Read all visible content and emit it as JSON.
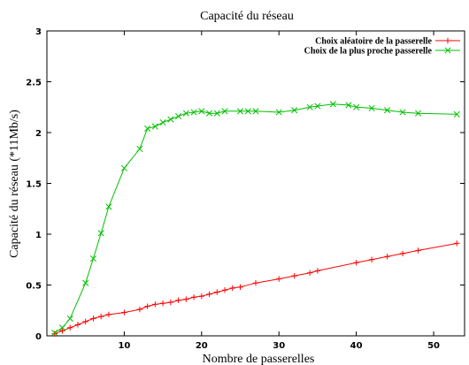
{
  "chart_data": {
    "type": "line",
    "title": "Capacité du réseau",
    "xlabel": "Nombre de passerelles",
    "ylabel": "Capacité du réseau (*11Mb/s)",
    "xlim": [
      0,
      54
    ],
    "ylim": [
      0,
      3
    ],
    "xticks": [
      10,
      20,
      30,
      40,
      50
    ],
    "yticks": [
      0,
      0.5,
      1,
      1.5,
      2,
      2.5,
      3
    ],
    "ytick_labels": [
      "0",
      "0.5",
      "1",
      "1.5",
      "2",
      "2.5",
      "3"
    ],
    "grid": false,
    "legend_position": "top-right",
    "series": [
      {
        "name": "Choix aléatoire de la passerelle",
        "color": "#ff0000",
        "marker": "plus",
        "points": [
          [
            1,
            0.02
          ],
          [
            2,
            0.05
          ],
          [
            3,
            0.08
          ],
          [
            4,
            0.11
          ],
          [
            5,
            0.14
          ],
          [
            6,
            0.17
          ],
          [
            7,
            0.19
          ],
          [
            8,
            0.21
          ],
          [
            10,
            0.23
          ],
          [
            12,
            0.26
          ],
          [
            13,
            0.29
          ],
          [
            14,
            0.31
          ],
          [
            15,
            0.32
          ],
          [
            16,
            0.33
          ],
          [
            17,
            0.35
          ],
          [
            18,
            0.36
          ],
          [
            19,
            0.38
          ],
          [
            20,
            0.39
          ],
          [
            21,
            0.41
          ],
          [
            22,
            0.43
          ],
          [
            23,
            0.45
          ],
          [
            24,
            0.47
          ],
          [
            25,
            0.48
          ],
          [
            27,
            0.52
          ],
          [
            30,
            0.56
          ],
          [
            32,
            0.59
          ],
          [
            34,
            0.62
          ],
          [
            35,
            0.64
          ],
          [
            40,
            0.72
          ],
          [
            42,
            0.75
          ],
          [
            44,
            0.78
          ],
          [
            46,
            0.81
          ],
          [
            48,
            0.84
          ],
          [
            53,
            0.91
          ]
        ]
      },
      {
        "name": "Choix de la plus proche passerelle",
        "color": "#00c000",
        "marker": "x",
        "points": [
          [
            1,
            0.03
          ],
          [
            2,
            0.08
          ],
          [
            3,
            0.17
          ],
          [
            5,
            0.52
          ],
          [
            6,
            0.76
          ],
          [
            7,
            1.01
          ],
          [
            8,
            1.27
          ],
          [
            10,
            1.65
          ],
          [
            12,
            1.84
          ],
          [
            13,
            2.04
          ],
          [
            14,
            2.06
          ],
          [
            15,
            2.1
          ],
          [
            16,
            2.13
          ],
          [
            17,
            2.16
          ],
          [
            18,
            2.19
          ],
          [
            19,
            2.2
          ],
          [
            20,
            2.21
          ],
          [
            21,
            2.19
          ],
          [
            22,
            2.19
          ],
          [
            23,
            2.21
          ],
          [
            25,
            2.21
          ],
          [
            26,
            2.21
          ],
          [
            27,
            2.21
          ],
          [
            30,
            2.2
          ],
          [
            32,
            2.22
          ],
          [
            34,
            2.25
          ],
          [
            35,
            2.26
          ],
          [
            37,
            2.28
          ],
          [
            39,
            2.27
          ],
          [
            40,
            2.25
          ],
          [
            42,
            2.24
          ],
          [
            44,
            2.22
          ],
          [
            46,
            2.2
          ],
          [
            48,
            2.19
          ],
          [
            53,
            2.18
          ]
        ]
      }
    ]
  }
}
